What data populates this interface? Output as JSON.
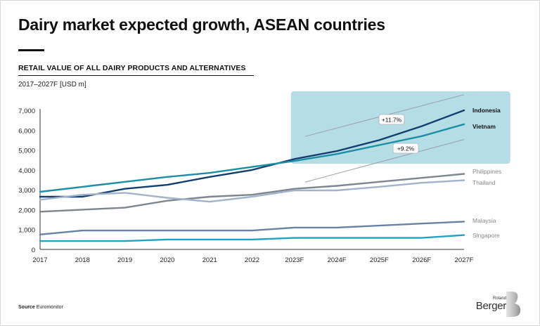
{
  "header": {
    "title": "Dairy market expected growth, ASEAN countries",
    "subtitle": "RETAIL VALUE OF ALL DAIRY PRODUCTS AND ALTERNATIVES",
    "unit_label": "2017–2027F [USD m]"
  },
  "footer": {
    "source_label": "Source",
    "source_value": "Euromonitor",
    "logo_top": "Roland",
    "logo_bottom": "Berger"
  },
  "chart_data": {
    "type": "line",
    "title": "Dairy market expected growth, ASEAN countries",
    "subtitle": "RETAIL VALUE OF ALL DAIRY PRODUCTS AND ALTERNATIVES",
    "xlabel": "",
    "ylabel": "2017–2027F [USD m]",
    "ylim": [
      0,
      7000
    ],
    "yticks": [
      0,
      1000,
      2000,
      3000,
      4000,
      5000,
      6000,
      7000
    ],
    "ytick_labels": [
      "0",
      "1,000",
      "2,000",
      "3,000",
      "4,000",
      "5,000",
      "6,000",
      "7,000"
    ],
    "grid": false,
    "legend": "inline-right",
    "x": [
      "2017",
      "2018",
      "2019",
      "2020",
      "2021",
      "2022",
      "2023F",
      "2024F",
      "2025F",
      "2026F",
      "2027F"
    ],
    "series": [
      {
        "name": "Indonesia",
        "color": "#123f6e",
        "bold_label": true,
        "values": [
          2650,
          2650,
          3050,
          3250,
          3650,
          4000,
          4550,
          4950,
          5500,
          6200,
          7000
        ]
      },
      {
        "name": "Vietnam",
        "color": "#1b8fa3",
        "bold_label": true,
        "values": [
          2900,
          3150,
          3400,
          3650,
          3850,
          4150,
          4450,
          4800,
          5250,
          5700,
          6300
        ]
      },
      {
        "name": "Philippines",
        "color": "#7f868e",
        "bold_label": false,
        "values": [
          1900,
          2000,
          2100,
          2450,
          2650,
          2750,
          3050,
          3200,
          3400,
          3600,
          3800
        ]
      },
      {
        "name": "Thailand",
        "color": "#a3b3c9",
        "bold_label": false,
        "values": [
          2500,
          2750,
          2850,
          2600,
          2400,
          2650,
          2970,
          2970,
          3150,
          3350,
          3480
        ]
      },
      {
        "name": "Malaysia",
        "color": "#6b82a3",
        "bold_label": false,
        "values": [
          750,
          950,
          950,
          950,
          950,
          950,
          1100,
          1100,
          1200,
          1300,
          1400
        ]
      },
      {
        "name": "Singapore",
        "color": "#1fa4c4",
        "bold_label": false,
        "values": [
          420,
          420,
          420,
          500,
          500,
          500,
          580,
          580,
          580,
          580,
          720
        ]
      }
    ],
    "highlight": {
      "color": "#b5dde6",
      "x_range": [
        "2023F",
        "2027F"
      ],
      "annotations": [
        {
          "label": "+11.7%",
          "series": "Indonesia",
          "kind": "CAGR"
        },
        {
          "label": "+9.2%",
          "series": "Vietnam",
          "kind": "CAGR"
        }
      ]
    }
  }
}
